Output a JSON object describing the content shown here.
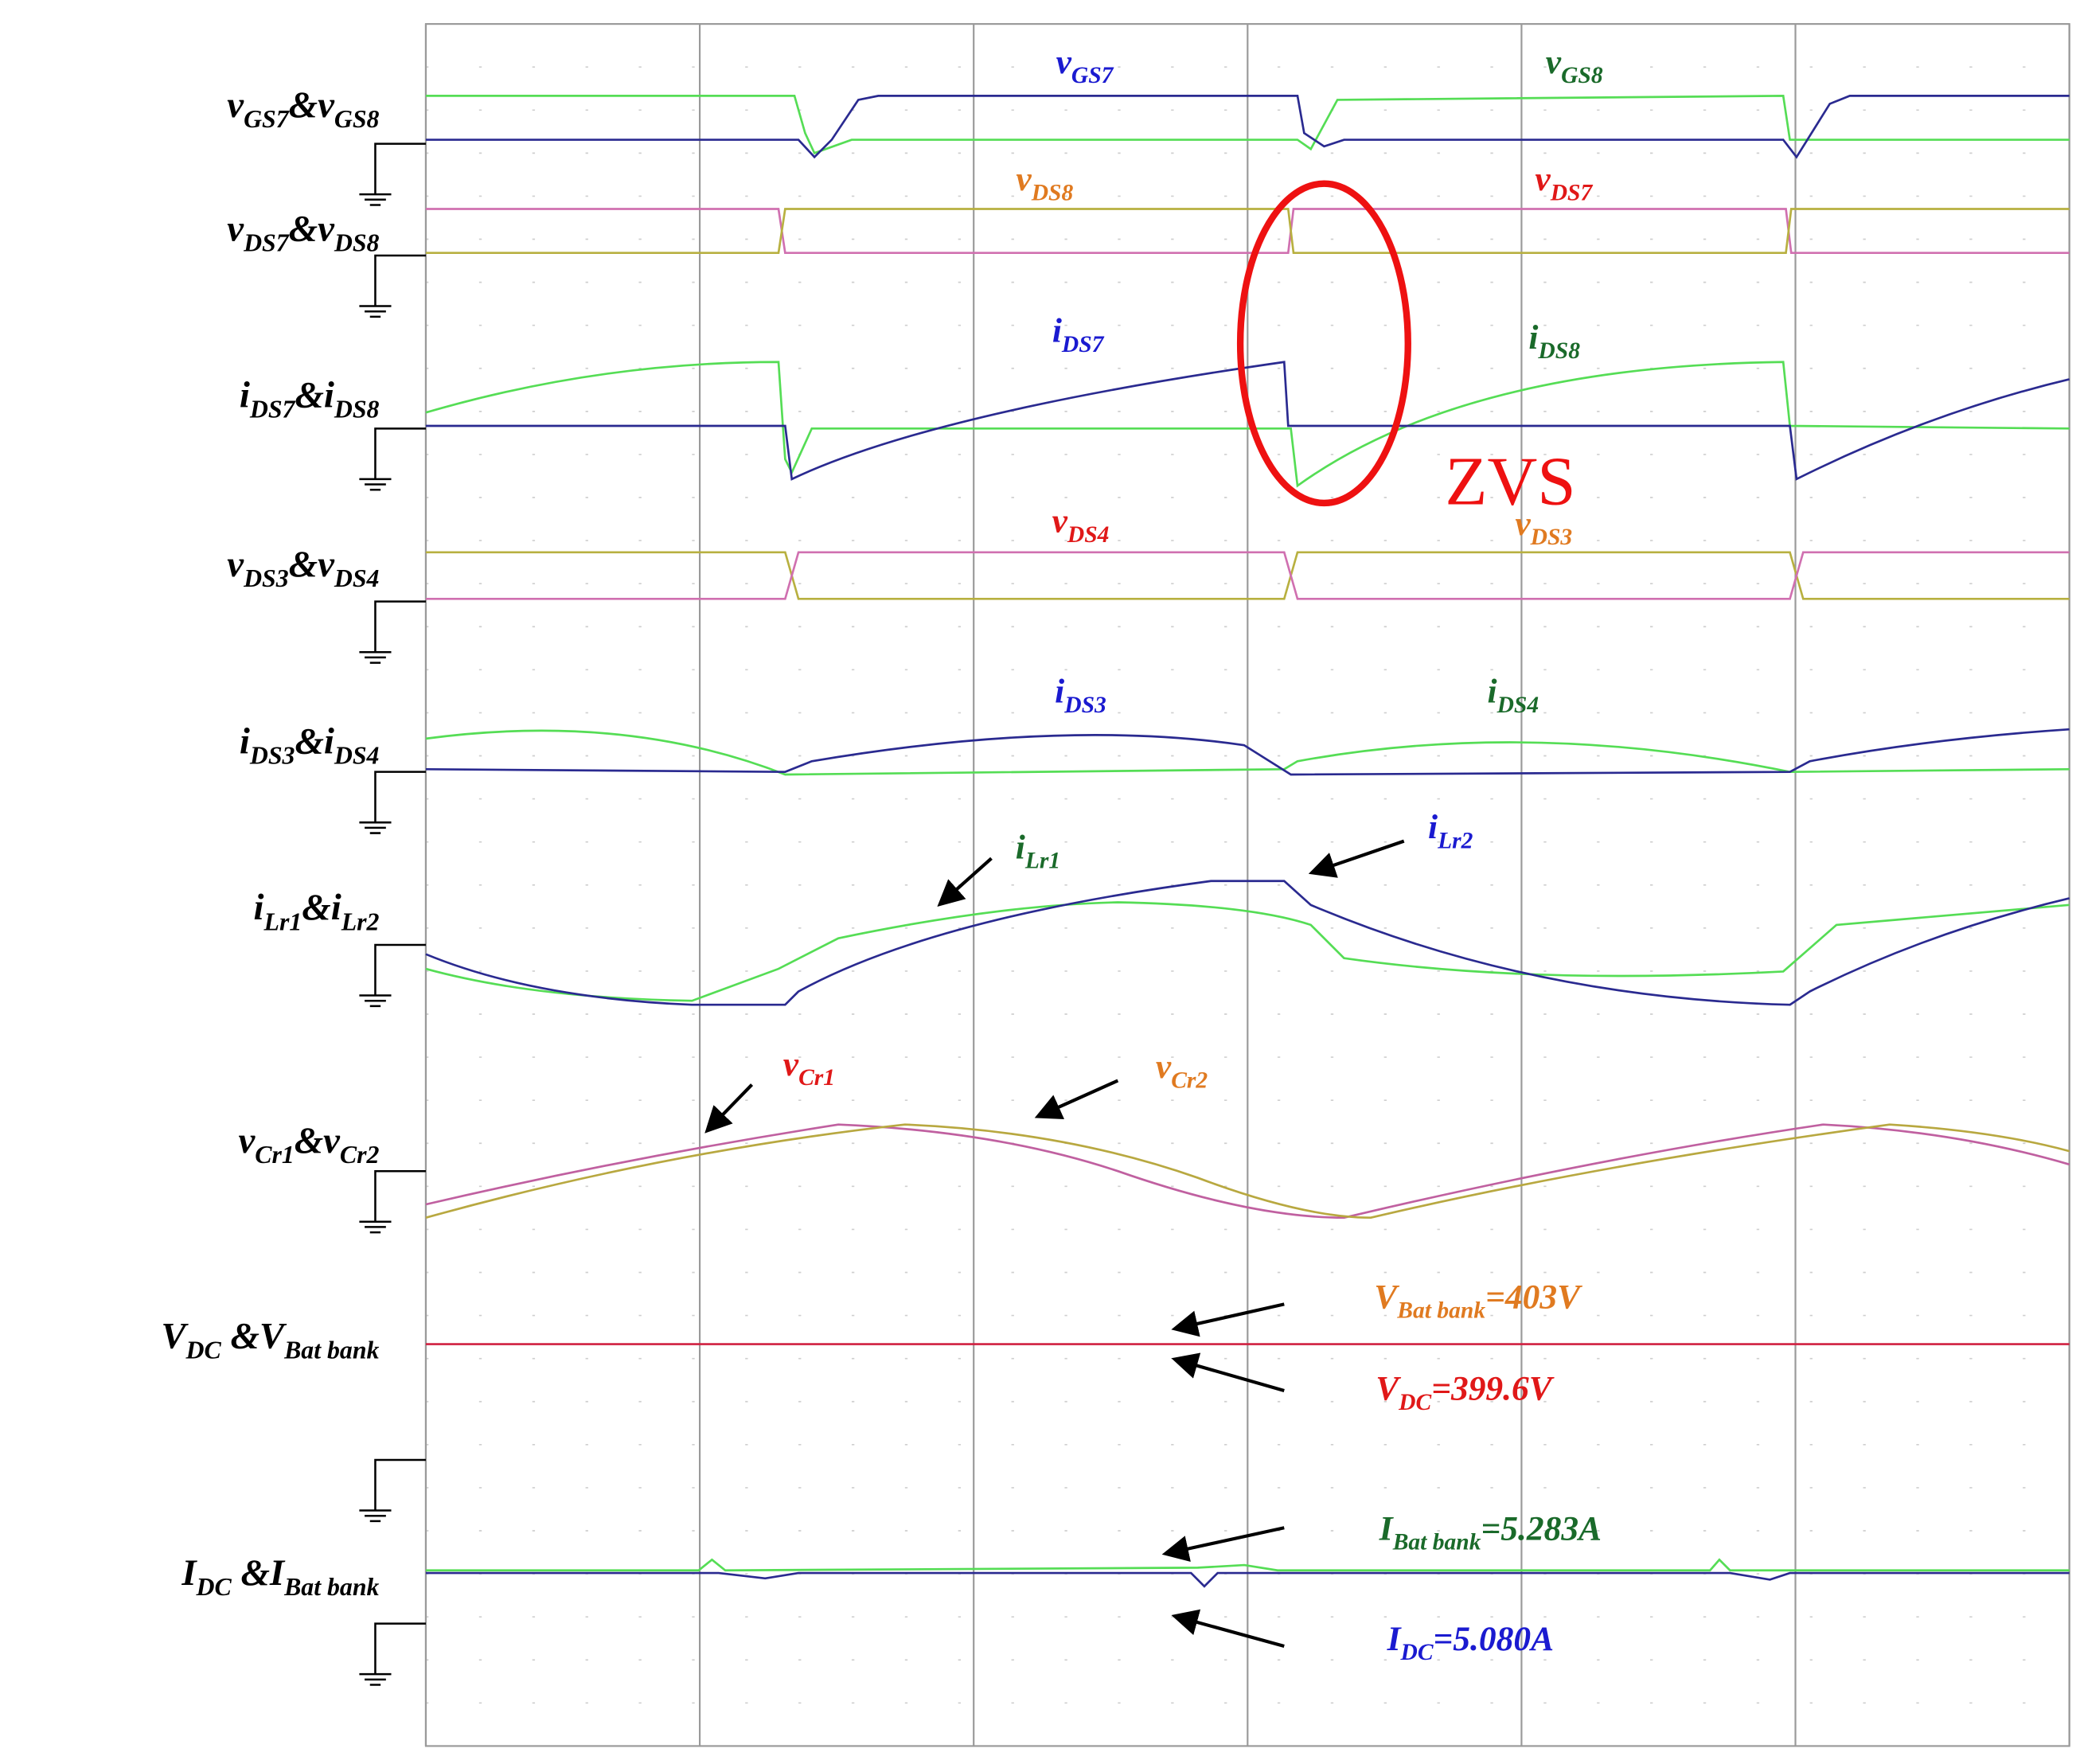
{
  "labels": [
    [
      "v",
      "GS7",
      "&v",
      "GS8"
    ],
    [
      "v",
      "DS7",
      "&v",
      "DS8"
    ],
    [
      "i",
      "DS7",
      "&i",
      "DS8"
    ],
    [
      "v",
      "DS3",
      "&v",
      "DS4"
    ],
    [
      "i",
      "DS3",
      "&i",
      "DS4"
    ],
    [
      "i",
      "Lr1",
      "&i",
      "Lr2"
    ],
    [
      "v",
      "Cr1",
      "&v",
      "Cr2"
    ],
    [
      "V",
      "DC",
      " &V",
      "Bat bank"
    ],
    [
      "I",
      "DC",
      " &I",
      "Bat bank"
    ]
  ],
  "annotations": [
    {
      "text": [
        "v",
        "GS7"
      ],
      "color": "#1a1ad0"
    },
    {
      "text": [
        "v",
        "GS8"
      ],
      "color": "#1a6a2a"
    },
    {
      "text": [
        "v",
        "DS8"
      ],
      "color": "#e07a20"
    },
    {
      "text": [
        "v",
        "DS7"
      ],
      "color": "#e01818"
    },
    {
      "text": [
        "i",
        "DS7"
      ],
      "color": "#1a1ad0"
    },
    {
      "text": [
        "i",
        "DS8"
      ],
      "color": "#1a6a2a"
    },
    {
      "text": [
        "v",
        "DS4"
      ],
      "color": "#e01818"
    },
    {
      "text": [
        "v",
        "DS3"
      ],
      "color": "#e07a20"
    },
    {
      "text": [
        "i",
        "DS3"
      ],
      "color": "#1a1ad0"
    },
    {
      "text": [
        "i",
        "DS4"
      ],
      "color": "#1a6a2a"
    },
    {
      "text": [
        "i",
        "Lr1"
      ],
      "color": "#1a6a2a"
    },
    {
      "text": [
        "i",
        "Lr2"
      ],
      "color": "#1a1ad0"
    },
    {
      "text": [
        "v",
        "Cr1"
      ],
      "color": "#e01818"
    },
    {
      "text": [
        "v",
        "Cr2"
      ],
      "color": "#e07a20"
    },
    {
      "text": [
        "V",
        "Bat bank",
        "=403V"
      ],
      "color": "#e07a20"
    },
    {
      "text": [
        "V",
        "DC",
        "=399.6V"
      ],
      "color": "#e01818"
    },
    {
      "text": [
        "I",
        "Bat bank",
        "=5.283A"
      ],
      "color": "#1a6a2a"
    },
    {
      "text": [
        "I",
        "DC",
        "=5.080A"
      ],
      "color": "#1a1ad0"
    }
  ],
  "zvs": "ZVS"
}
